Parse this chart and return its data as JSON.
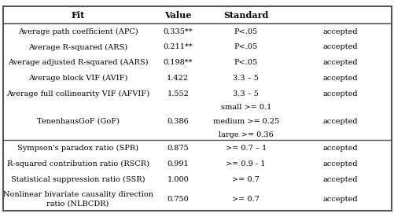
{
  "header": [
    "Fit",
    "Value",
    "Standard",
    ""
  ],
  "rows": [
    [
      "Average path coefficient (APC)",
      "0.335**",
      "P<.05",
      "accepted"
    ],
    [
      "Average R-squared (ARS)",
      "0.211**",
      "P<.05",
      "accepted"
    ],
    [
      "Average adjusted R-squared (AARS)",
      "0.198**",
      "P<.05",
      "accepted"
    ],
    [
      "Average block VIF (AVIF)",
      "1.422",
      "3.3 – 5",
      "accepted"
    ],
    [
      "Average full collinearity VIF (AFVIF)",
      "1.552",
      "3.3 – 5",
      "accepted"
    ],
    [
      "",
      "",
      "small >= 0.1",
      ""
    ],
    [
      "TenenhausGoF (GoF)",
      "0.386",
      "medium >= 0.25",
      "accepted"
    ],
    [
      "",
      "",
      "large >= 0.36",
      ""
    ],
    [
      "Sympson's paradox ratio (SPR)",
      "0.875",
      ">= 0.7 – 1",
      "accepted"
    ],
    [
      "R-squared contribution ratio (RSCR)",
      "0.991",
      ">= 0.9 - 1",
      "accepted"
    ],
    [
      "Statistical suppression ratio (SSR)",
      "1.000",
      ">= 0.7",
      "accepted"
    ],
    [
      "Nonlinear bivariate causality direction\nratio (NLBCDR)",
      "0.750",
      ">= 0.7",
      "accepted"
    ]
  ],
  "border_color": "#555555",
  "font_size": 7.0,
  "header_font_size": 8.0,
  "figsize": [
    5.02,
    2.76
  ],
  "dpi": 100
}
